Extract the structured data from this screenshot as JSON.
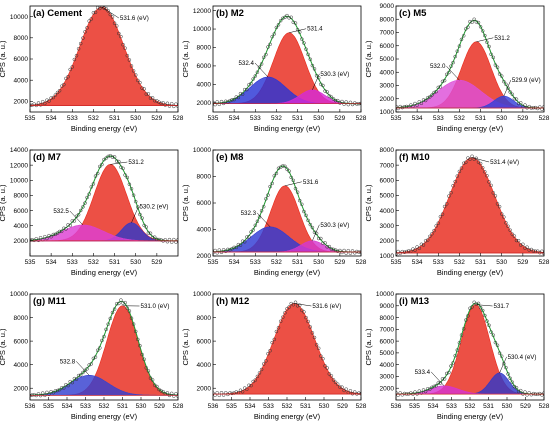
{
  "chart_data": [
    {
      "type": "area",
      "panel_label": "(a) Cement",
      "xlabel": "Binding energy (eV)",
      "ylabel": "CPS (a. u.)",
      "xlim": [
        535,
        528
      ],
      "ylim": [
        1000,
        11000
      ],
      "xticks": [
        535,
        534,
        533,
        532,
        531,
        530,
        529,
        528
      ],
      "yticks": [
        2000,
        4000,
        6000,
        8000,
        10000
      ],
      "baseline": 1600,
      "peaks": [
        {
          "label": "531.6 (eV)",
          "center": 531.6,
          "height": 9300,
          "fwhm": 2.45,
          "color": "#e82a1c"
        }
      ],
      "annotations": [
        {
          "text": "531.6 (eV)",
          "peak": 0
        }
      ]
    },
    {
      "type": "area",
      "panel_label": "(b) M2",
      "xlabel": "Binding energy (eV)",
      "ylabel": "CPS (a. u.)",
      "xlim": [
        535,
        528
      ],
      "ylim": [
        1000,
        12500
      ],
      "xticks": [
        535,
        534,
        533,
        532,
        531,
        530,
        529,
        528
      ],
      "yticks": [
        2000,
        4000,
        6000,
        8000,
        10000,
        12000
      ],
      "baseline": 1900,
      "peaks": [
        {
          "label": "532.4",
          "center": 532.4,
          "height": 2900,
          "fwhm": 2.0,
          "color": "#2a35d6"
        },
        {
          "label": "531.4",
          "center": 531.4,
          "height": 7700,
          "fwhm": 1.75,
          "color": "#e82a1c"
        },
        {
          "label": "530.3 (eV)",
          "center": 530.3,
          "height": 1500,
          "fwhm": 1.4,
          "color": "#d62bd6"
        }
      ],
      "annotations": [
        {
          "text": "531.4",
          "peak": 1
        },
        {
          "text": "532.4",
          "peak": 0
        },
        {
          "text": "530.3 (eV)",
          "peak": 2
        }
      ]
    },
    {
      "type": "area",
      "panel_label": "(c) M5",
      "xlabel": "Binding energy (eV)",
      "ylabel": "CPS (a. u.)",
      "xlim": [
        535,
        528
      ],
      "ylim": [
        1000,
        9000
      ],
      "xticks": [
        535,
        534,
        533,
        532,
        531,
        530,
        529,
        528
      ],
      "yticks": [
        1000,
        2000,
        3000,
        4000,
        5000,
        6000,
        7000,
        8000,
        9000
      ],
      "baseline": 1300,
      "peaks": [
        {
          "label": "532.0",
          "center": 532.0,
          "height": 2100,
          "fwhm": 2.4,
          "color": "#dd4fd8"
        },
        {
          "label": "531.2",
          "center": 531.2,
          "height": 5000,
          "fwhm": 1.65,
          "color": "#e82a1c"
        },
        {
          "label": "529.9 (eV)",
          "center": 529.9,
          "height": 900,
          "fwhm": 1.1,
          "color": "#3340d8"
        }
      ],
      "annotations": [
        {
          "text": "531.2",
          "peak": 1
        },
        {
          "text": "532.0",
          "peak": 0
        },
        {
          "text": "529.9 (eV)",
          "peak": 2
        }
      ]
    },
    {
      "type": "area",
      "panel_label": "(d) M7",
      "xlabel": "Binding energy (eV)",
      "ylabel": "CPS (a. u.)",
      "xlim": [
        535,
        528
      ],
      "ylim": [
        0,
        14000
      ],
      "xticks": [
        535,
        534,
        533,
        532,
        531,
        530,
        529
      ],
      "yticks": [
        2000,
        4000,
        6000,
        8000,
        10000,
        12000,
        14000
      ],
      "baseline": 2000,
      "peaks": [
        {
          "label": "532.5",
          "center": 532.5,
          "height": 2100,
          "fwhm": 2.3,
          "color": "#dd3fd4"
        },
        {
          "label": "531.2",
          "center": 531.2,
          "height": 10100,
          "fwhm": 1.8,
          "color": "#e82a1c"
        },
        {
          "label": "530.2 (eV)",
          "center": 530.2,
          "height": 2400,
          "fwhm": 1.1,
          "color": "#3138c8"
        }
      ],
      "annotations": [
        {
          "text": "531.2",
          "peak": 1
        },
        {
          "text": "532.5",
          "peak": 0
        },
        {
          "text": "530.2 (eV)",
          "peak": 2
        }
      ]
    },
    {
      "type": "area",
      "panel_label": "(e) M8",
      "xlabel": "Binding energy (eV)",
      "ylabel": "CPS (a. u.)",
      "xlim": [
        535,
        528
      ],
      "ylim": [
        2000,
        10000
      ],
      "xticks": [
        535,
        534,
        533,
        532,
        531,
        530,
        529,
        528
      ],
      "yticks": [
        2000,
        4000,
        6000,
        8000,
        10000
      ],
      "baseline": 2300,
      "peaks": [
        {
          "label": "532.3",
          "center": 532.3,
          "height": 1900,
          "fwhm": 2.1,
          "color": "#2f3ad4"
        },
        {
          "label": "531.6",
          "center": 531.6,
          "height": 5000,
          "fwhm": 1.6,
          "color": "#e82a1c"
        },
        {
          "label": "530.3 (eV)",
          "center": 530.3,
          "height": 850,
          "fwhm": 1.3,
          "color": "#d438d0"
        }
      ],
      "annotations": [
        {
          "text": "531.6",
          "peak": 1
        },
        {
          "text": "532.3",
          "peak": 0
        },
        {
          "text": "530.3 (eV)",
          "peak": 2
        }
      ]
    },
    {
      "type": "area",
      "panel_label": "(f) M10",
      "xlabel": "Binding energy (eV)",
      "ylabel": "CPS (a. u.)",
      "xlim": [
        535,
        528
      ],
      "ylim": [
        1000,
        8000
      ],
      "xticks": [
        535,
        534,
        533,
        532,
        531,
        530,
        529,
        528
      ],
      "yticks": [
        1000,
        2000,
        3000,
        4000,
        5000,
        6000,
        7000,
        8000
      ],
      "baseline": 1200,
      "peaks": [
        {
          "label": "531.4 (eV)",
          "center": 531.4,
          "height": 6300,
          "fwhm": 2.5,
          "color": "#e82a1c"
        }
      ],
      "annotations": [
        {
          "text": "531.4 (eV)",
          "peak": 0
        }
      ]
    },
    {
      "type": "area",
      "panel_label": "(g) M11",
      "xlabel": "Binding energy (eV)",
      "ylabel": "CPS (a. u.)",
      "xlim": [
        536,
        528
      ],
      "ylim": [
        1000,
        10000
      ],
      "xticks": [
        536,
        535,
        534,
        533,
        532,
        531,
        530,
        529,
        528
      ],
      "yticks": [
        2000,
        4000,
        6000,
        8000,
        10000
      ],
      "baseline": 1400,
      "peaks": [
        {
          "label": "532.8",
          "center": 532.8,
          "height": 1700,
          "fwhm": 2.4,
          "color": "#3440d0"
        },
        {
          "label": "531.0 (eV)",
          "center": 531.0,
          "height": 7600,
          "fwhm": 2.0,
          "color": "#e82a1c"
        }
      ],
      "annotations": [
        {
          "text": "531.0 (eV)",
          "peak": 1
        },
        {
          "text": "532.8",
          "peak": 0
        }
      ]
    },
    {
      "type": "area",
      "panel_label": "(h) M12",
      "xlabel": "Binding energy (eV)",
      "ylabel": "CPS (a. u.)",
      "xlim": [
        536,
        528
      ],
      "ylim": [
        1000,
        10000
      ],
      "xticks": [
        536,
        535,
        534,
        533,
        532,
        531,
        530,
        529,
        528
      ],
      "yticks": [
        2000,
        4000,
        6000,
        8000,
        10000
      ],
      "baseline": 1500,
      "peaks": [
        {
          "label": "531.6 (eV)",
          "center": 531.6,
          "height": 7700,
          "fwhm": 2.6,
          "color": "#e82a1c"
        }
      ],
      "annotations": [
        {
          "text": "531.6 (eV)",
          "peak": 0
        }
      ]
    },
    {
      "type": "area",
      "panel_label": "(i) M13",
      "xlabel": "Binding energy (eV)",
      "ylabel": "CPS (a. u.)",
      "xlim": [
        536,
        528
      ],
      "ylim": [
        1000,
        10000
      ],
      "xticks": [
        536,
        535,
        534,
        533,
        532,
        531,
        530,
        529,
        528
      ],
      "yticks": [
        2000,
        3000,
        4000,
        5000,
        6000,
        7000,
        8000,
        9000,
        10000
      ],
      "baseline": 1500,
      "peaks": [
        {
          "label": "533.4",
          "center": 533.4,
          "height": 700,
          "fwhm": 1.8,
          "color": "#d635d2"
        },
        {
          "label": "531.7",
          "center": 531.7,
          "height": 7600,
          "fwhm": 1.8,
          "color": "#e82a1c"
        },
        {
          "label": "530.4 (eV)",
          "center": 530.4,
          "height": 1800,
          "fwhm": 1.2,
          "color": "#3138c8"
        }
      ],
      "annotations": [
        {
          "text": "531.7",
          "peak": 1
        },
        {
          "text": "533.4",
          "peak": 0
        },
        {
          "text": "530.4 (eV)",
          "peak": 2
        }
      ]
    }
  ]
}
